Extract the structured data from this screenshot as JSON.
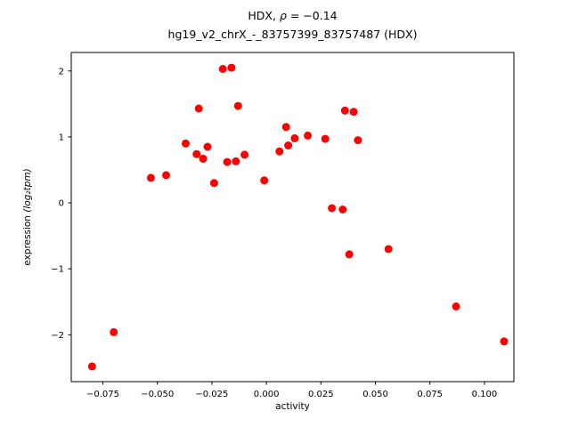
{
  "chart_data": {
    "type": "scatter",
    "title_prefix": "HDX, ",
    "title_rho": "ρ",
    "title_rest": " = −0.14",
    "subtitle": "hg19_v2_chrX_-_83757399_83757487 (HDX)",
    "xlabel": "activity",
    "ylabel_plain": "expression ",
    "ylabel_math": "(log₂tpm)",
    "xlim": [
      -0.0895,
      0.1135
    ],
    "ylim": [
      -2.71,
      2.28
    ],
    "xticks": [
      -0.075,
      -0.05,
      -0.025,
      0.0,
      0.025,
      0.05,
      0.075,
      0.1
    ],
    "xtick_labels": [
      "−0.075",
      "−0.050",
      "−0.025",
      "0.000",
      "0.025",
      "0.050",
      "0.075",
      "0.100"
    ],
    "yticks": [
      -2,
      -1,
      0,
      1,
      2
    ],
    "ytick_labels": [
      "−2",
      "−1",
      "0",
      "1",
      "2"
    ],
    "marker_color": "#ff0000",
    "marker_radius": 4.5,
    "rho": -0.14,
    "points": [
      [
        -0.08,
        -2.48
      ],
      [
        -0.07,
        -1.96
      ],
      [
        -0.053,
        0.38
      ],
      [
        -0.046,
        0.42
      ],
      [
        -0.037,
        0.9
      ],
      [
        -0.032,
        0.74
      ],
      [
        -0.031,
        1.43
      ],
      [
        -0.029,
        0.67
      ],
      [
        -0.027,
        0.85
      ],
      [
        -0.024,
        0.3
      ],
      [
        -0.02,
        2.03
      ],
      [
        -0.018,
        0.62
      ],
      [
        -0.016,
        2.05
      ],
      [
        -0.014,
        0.63
      ],
      [
        -0.013,
        1.47
      ],
      [
        -0.01,
        0.73
      ],
      [
        -0.001,
        0.34
      ],
      [
        0.006,
        0.78
      ],
      [
        0.009,
        1.15
      ],
      [
        0.01,
        0.87
      ],
      [
        0.013,
        0.98
      ],
      [
        0.019,
        1.02
      ],
      [
        0.027,
        0.97
      ],
      [
        0.03,
        -0.08
      ],
      [
        0.035,
        -0.1
      ],
      [
        0.036,
        1.4
      ],
      [
        0.04,
        1.38
      ],
      [
        0.038,
        -0.78
      ],
      [
        0.042,
        0.95
      ],
      [
        0.056,
        -0.7
      ],
      [
        0.087,
        -1.57
      ],
      [
        0.109,
        -2.1
      ]
    ]
  }
}
